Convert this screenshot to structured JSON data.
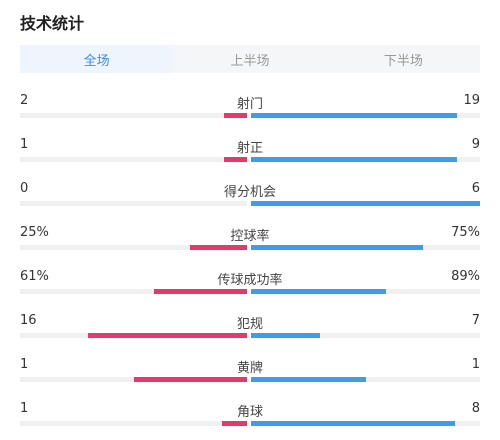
{
  "title": "技术统计",
  "tabs": [
    {
      "label": "全场",
      "active": true
    },
    {
      "label": "上半场",
      "active": false
    },
    {
      "label": "下半场",
      "active": false
    }
  ],
  "colors": {
    "home": "#e8386b",
    "away": "#3f9de8"
  },
  "stats": [
    {
      "label": "射门",
      "home": "2",
      "away": "19",
      "home_fraction": 0.1,
      "away_fraction": 0.9
    },
    {
      "label": "射正",
      "home": "1",
      "away": "9",
      "home_fraction": 0.1,
      "away_fraction": 0.9
    },
    {
      "label": "得分机会",
      "home": "0",
      "away": "6",
      "home_fraction": 0.0,
      "away_fraction": 1.0
    },
    {
      "label": "控球率",
      "home": "25%",
      "away": "75%",
      "home_fraction": 0.25,
      "away_fraction": 0.75
    },
    {
      "label": "传球成功率",
      "home": "61%",
      "away": "89%",
      "home_fraction": 0.41,
      "away_fraction": 0.59
    },
    {
      "label": "犯规",
      "home": "16",
      "away": "7",
      "home_fraction": 0.7,
      "away_fraction": 0.3
    },
    {
      "label": "黄牌",
      "home": "1",
      "away": "1",
      "home_fraction": 0.5,
      "away_fraction": 0.5
    },
    {
      "label": "角球",
      "home": "1",
      "away": "8",
      "home_fraction": 0.11,
      "away_fraction": 0.89
    }
  ]
}
